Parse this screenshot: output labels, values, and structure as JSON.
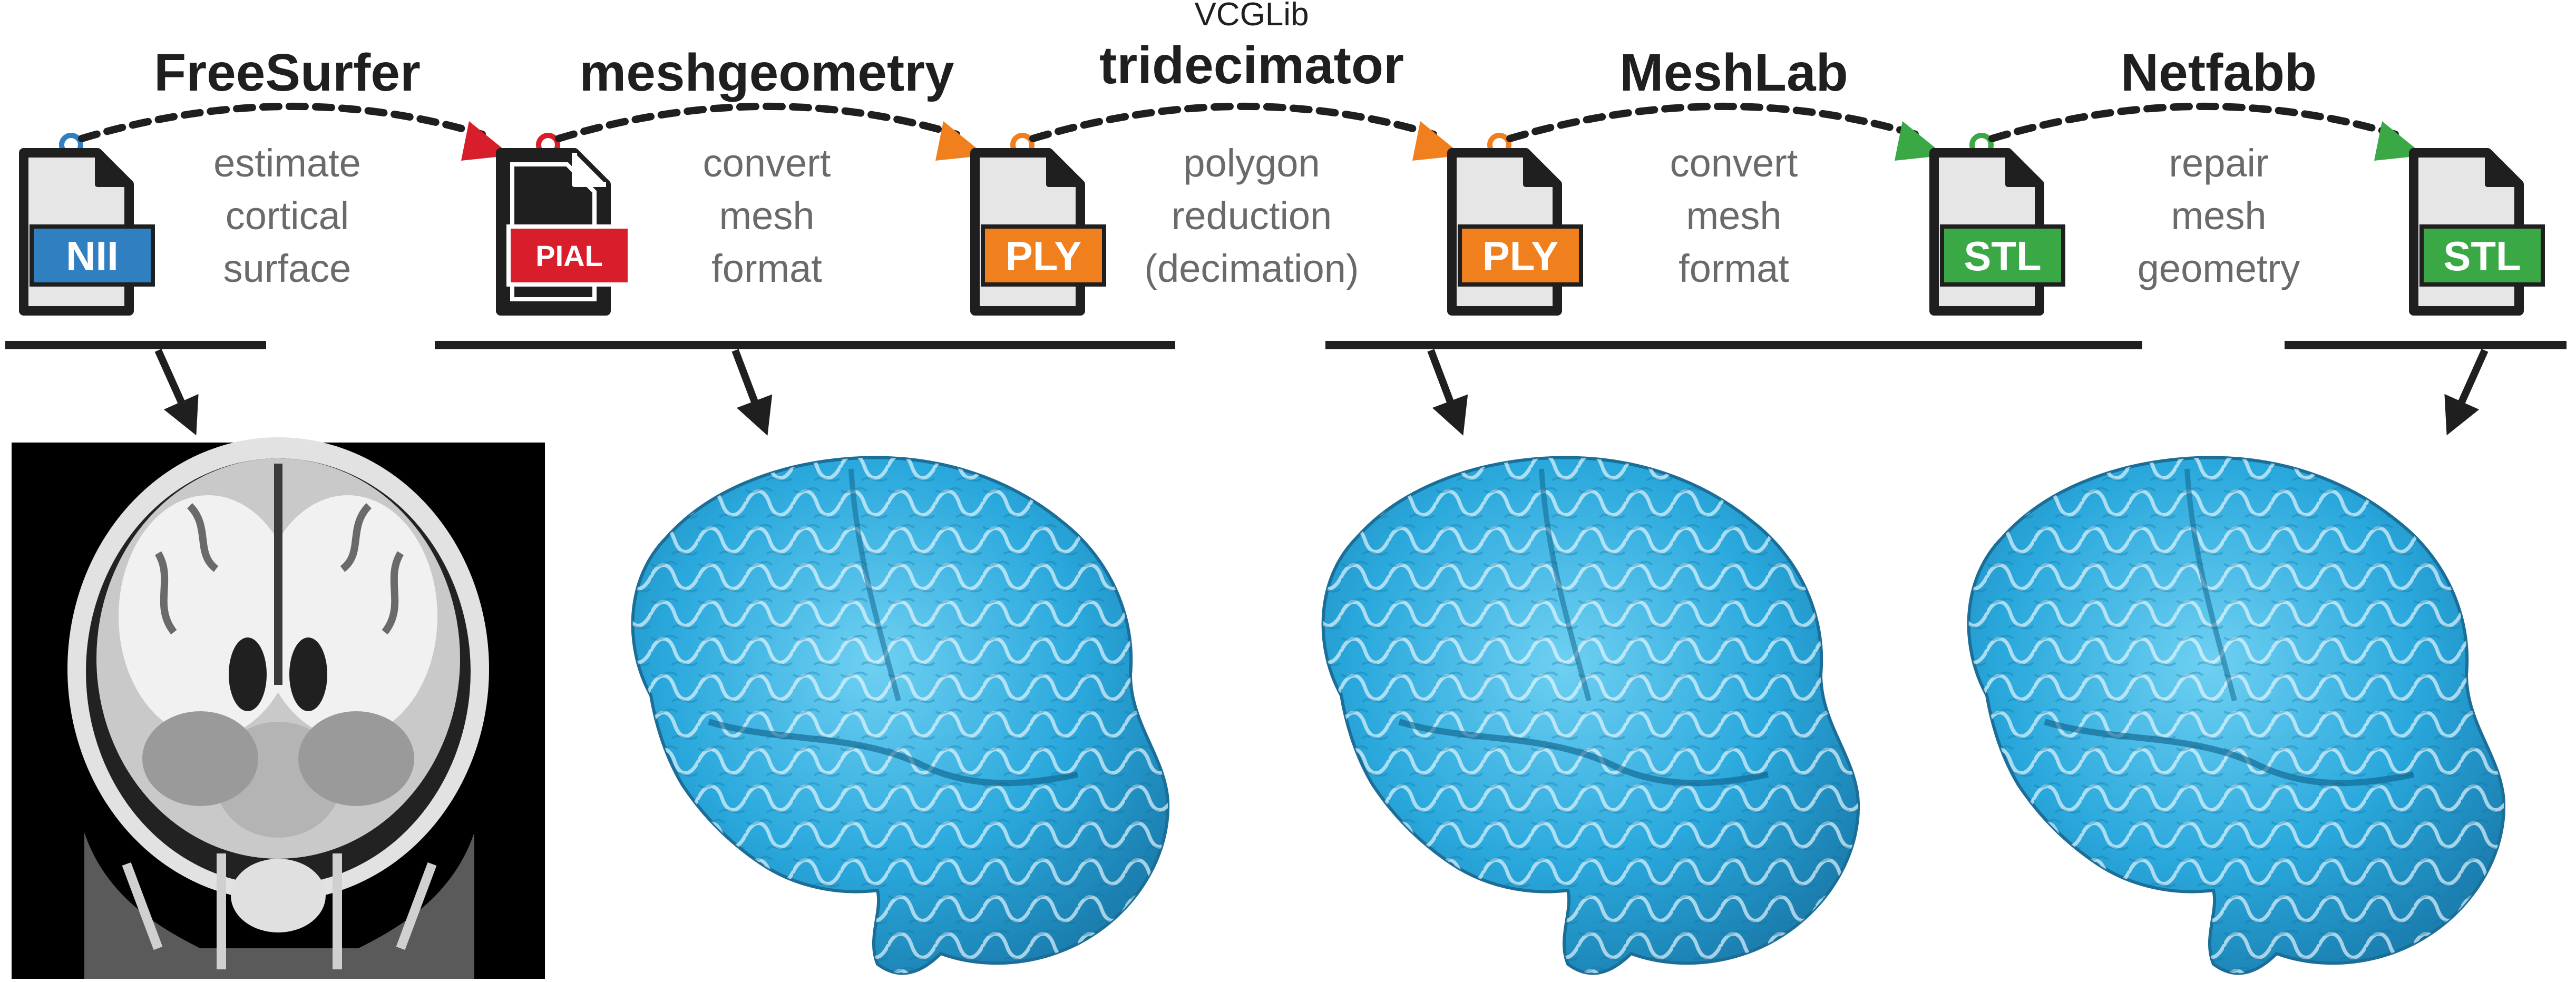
{
  "colors": {
    "nii": "#2f7fc1",
    "pial": "#d81e2a",
    "ply": "#f07f1d",
    "stl": "#3aa845",
    "brain": "#2aa8dc",
    "ink": "#1f1f1f",
    "desc": "#6a6a6a"
  },
  "files": [
    {
      "format": "NII"
    },
    {
      "format": "PIAL"
    },
    {
      "format": "PLY"
    },
    {
      "format": "PLY"
    },
    {
      "format": "STL"
    },
    {
      "format": "STL"
    }
  ],
  "steps": [
    {
      "tool": "FreeSurfer",
      "tool_sub": "",
      "desc": [
        "estimate",
        "cortical",
        "surface"
      ]
    },
    {
      "tool": "meshgeometry",
      "tool_sub": "",
      "desc": [
        "convert",
        "mesh",
        "format"
      ]
    },
    {
      "tool": "tridecimator",
      "tool_sub": "VCGLib",
      "desc": [
        "polygon",
        "reduction",
        "(decimation)"
      ]
    },
    {
      "tool": "MeshLab",
      "tool_sub": "",
      "desc": [
        "convert",
        "mesh",
        "format"
      ]
    },
    {
      "tool": "Netfabb",
      "tool_sub": "",
      "desc": [
        "repair",
        "mesh",
        "geometry"
      ]
    }
  ],
  "images": [
    {
      "kind": "mri-coronal-slice-icon"
    },
    {
      "kind": "brain-mesh-icon"
    },
    {
      "kind": "brain-mesh-icon"
    },
    {
      "kind": "brain-mesh-icon"
    }
  ]
}
